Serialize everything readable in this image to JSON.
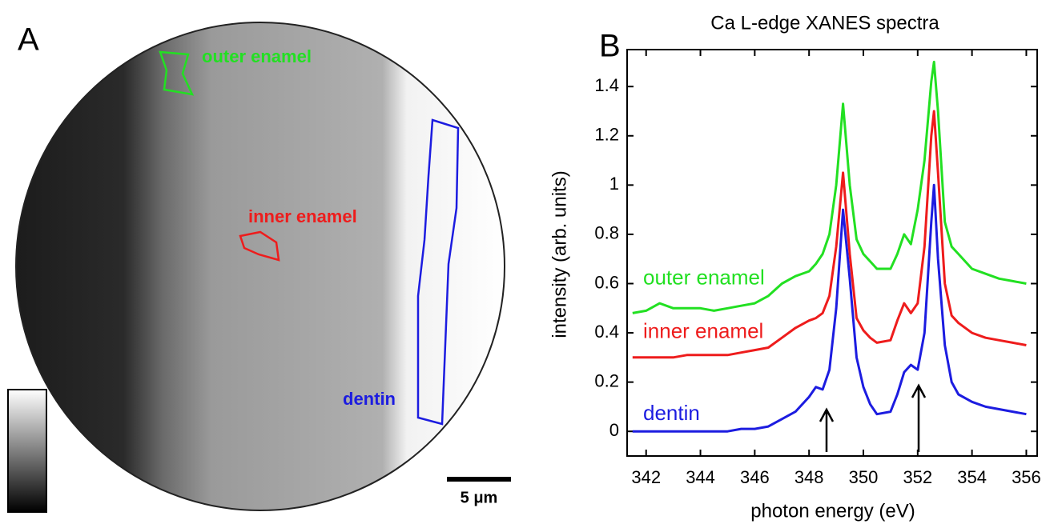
{
  "image_panel": {
    "label": "A",
    "regions": [
      "outer enamel",
      "inner enamel",
      "dentin"
    ],
    "scale_bar": "5 μm"
  },
  "chart_data": {
    "type": "line",
    "panel_label": "B",
    "title": "Ca L-edge XANES spectra",
    "x_label": "photon energy (eV)",
    "y_label": "intensity (arb. units)",
    "x": [
      341.5,
      342,
      342.5,
      343,
      343.5,
      344,
      344.5,
      345,
      345.5,
      346,
      346.5,
      347,
      347.5,
      348,
      348.25,
      348.5,
      348.75,
      349,
      349.25,
      349.5,
      349.75,
      350,
      350.25,
      350.5,
      351,
      351.25,
      351.5,
      351.75,
      352,
      352.25,
      352.5,
      352.6,
      352.75,
      353,
      353.25,
      353.5,
      354,
      354.5,
      355,
      355.5,
      356
    ],
    "series": [
      {
        "name": "outer enamel",
        "color": "#22e022",
        "values": [
          0.48,
          0.49,
          0.52,
          0.5,
          0.5,
          0.5,
          0.49,
          0.5,
          0.51,
          0.52,
          0.55,
          0.6,
          0.63,
          0.65,
          0.68,
          0.72,
          0.8,
          1.0,
          1.33,
          1.0,
          0.78,
          0.72,
          0.69,
          0.66,
          0.66,
          0.72,
          0.8,
          0.76,
          0.9,
          1.1,
          1.42,
          1.5,
          1.3,
          0.85,
          0.75,
          0.72,
          0.66,
          0.64,
          0.62,
          0.61,
          0.6
        ]
      },
      {
        "name": "inner enamel",
        "color": "#ee1c1c",
        "values": [
          0.3,
          0.3,
          0.3,
          0.3,
          0.31,
          0.31,
          0.31,
          0.31,
          0.32,
          0.33,
          0.34,
          0.38,
          0.42,
          0.45,
          0.46,
          0.48,
          0.55,
          0.75,
          1.05,
          0.72,
          0.46,
          0.41,
          0.38,
          0.36,
          0.37,
          0.45,
          0.52,
          0.48,
          0.52,
          0.75,
          1.2,
          1.3,
          1.05,
          0.6,
          0.47,
          0.44,
          0.4,
          0.38,
          0.37,
          0.36,
          0.35
        ]
      },
      {
        "name": "dentin",
        "color": "#1c1ce0",
        "values": [
          0,
          0,
          0,
          0,
          0,
          0,
          0,
          0,
          0.01,
          0.01,
          0.02,
          0.05,
          0.08,
          0.14,
          0.18,
          0.17,
          0.25,
          0.5,
          0.9,
          0.62,
          0.3,
          0.18,
          0.11,
          0.07,
          0.08,
          0.15,
          0.24,
          0.27,
          0.25,
          0.4,
          0.85,
          1.0,
          0.7,
          0.35,
          0.2,
          0.15,
          0.12,
          0.1,
          0.09,
          0.08,
          0.07
        ]
      }
    ],
    "xlim": [
      341.3,
      356.4
    ],
    "xticks": [
      342,
      344,
      346,
      348,
      350,
      352,
      354,
      356
    ],
    "ylim": [
      -0.1,
      1.55
    ],
    "yticks": [
      0,
      0.2,
      0.4,
      0.6,
      0.8,
      1,
      1.2,
      1.4
    ],
    "grid": false
  }
}
